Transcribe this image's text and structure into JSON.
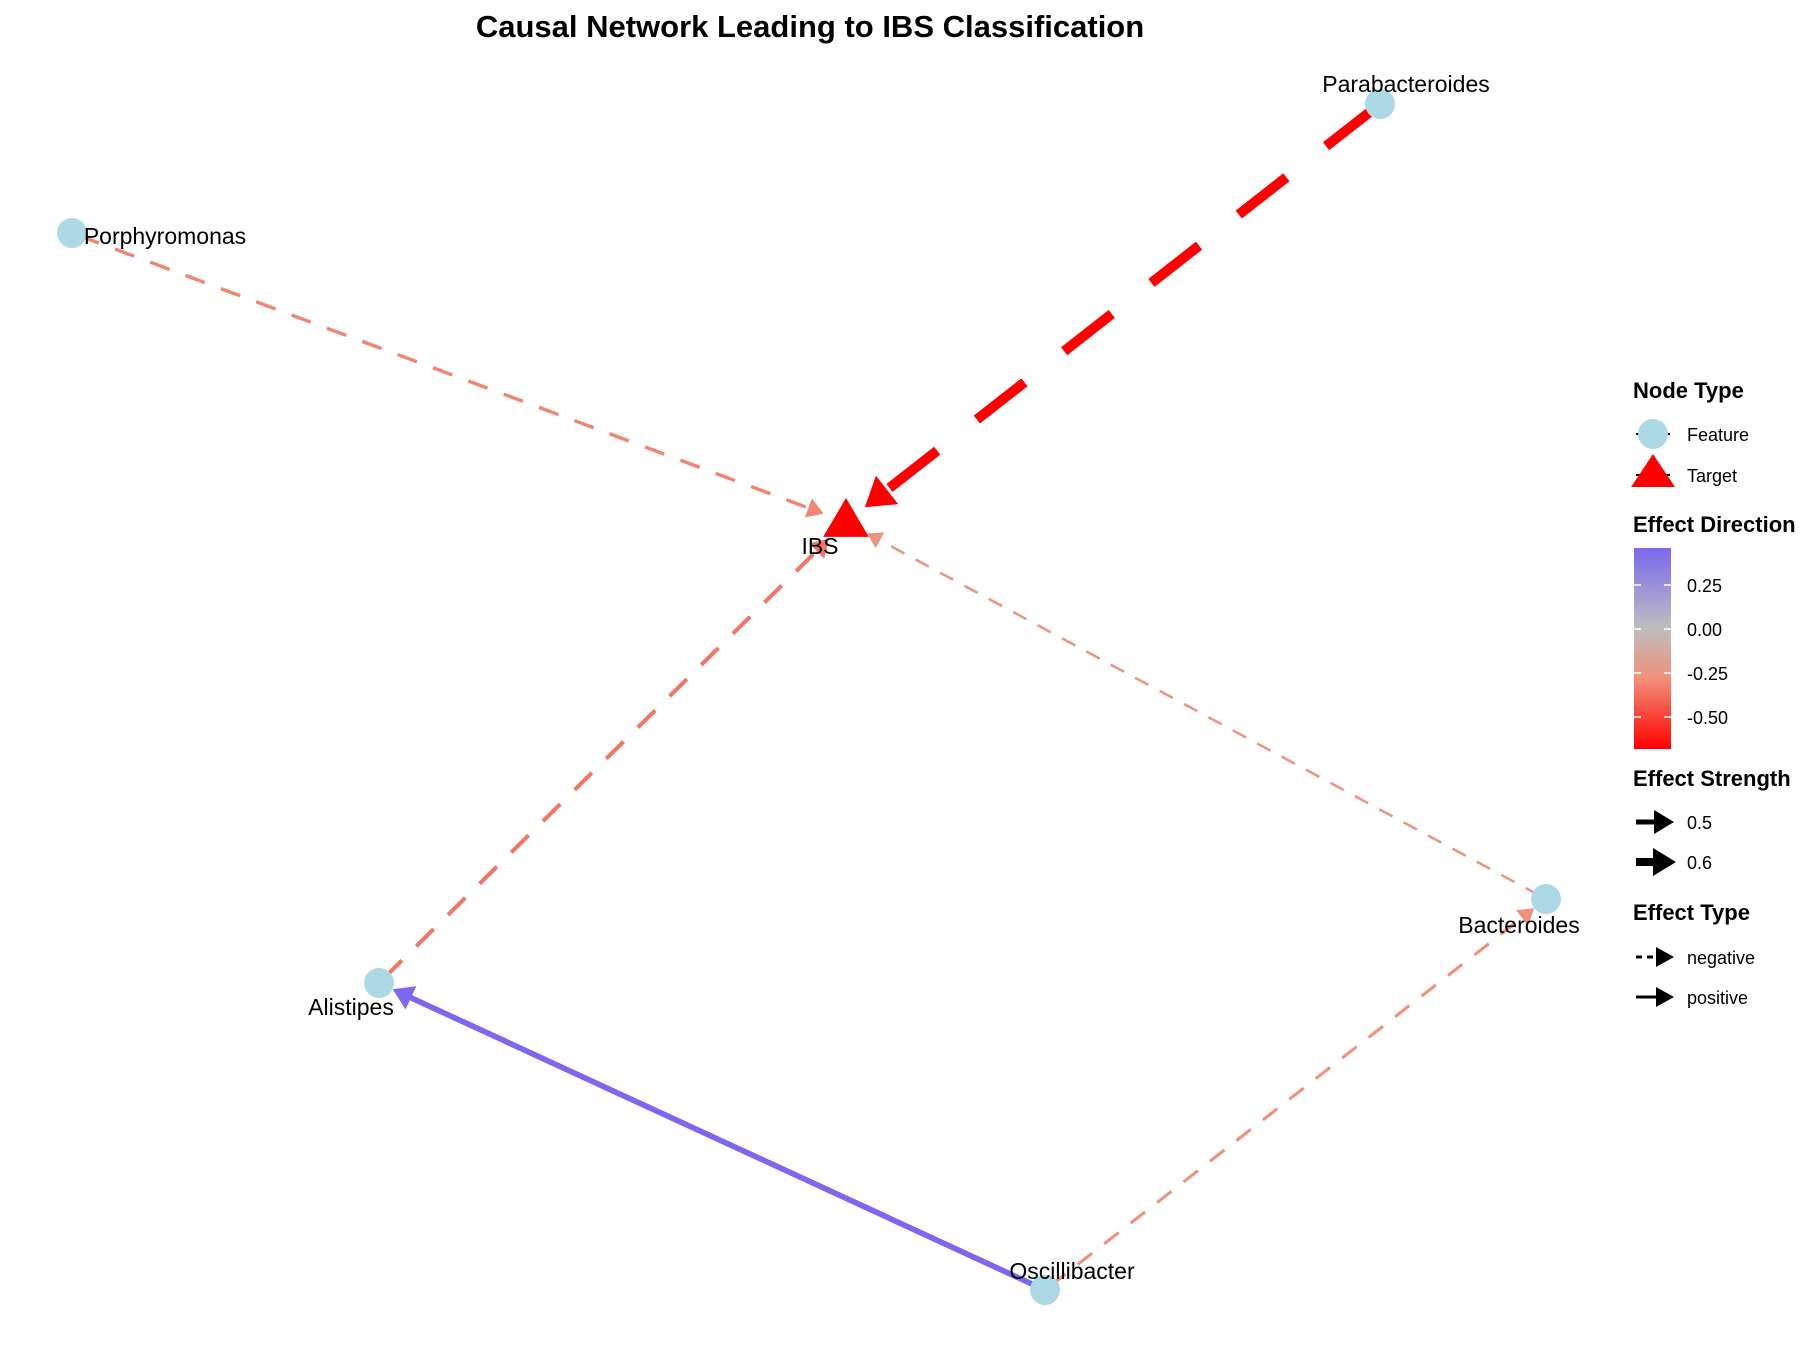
{
  "title": "Causal Network Leading to IBS Classification",
  "colors": {
    "feature_node": "#ADD8E6",
    "target_node": "#FF0000",
    "negative_max": "#FF0000",
    "neutral": "#BEBEBE",
    "positive_max": "#7B68EE",
    "text": "#000000"
  },
  "chart_data": {
    "type": "network",
    "nodes": [
      {
        "id": "IBS",
        "label": "IBS",
        "type": "Target"
      },
      {
        "id": "Parabacteroides",
        "label": "Parabacteroides",
        "type": "Feature"
      },
      {
        "id": "Porphyromonas",
        "label": "Porphyromonas",
        "type": "Feature"
      },
      {
        "id": "Bacteroides",
        "label": "Bacteroides",
        "type": "Feature"
      },
      {
        "id": "Alistipes",
        "label": "Alistipes",
        "type": "Feature"
      },
      {
        "id": "Oscillibacter",
        "label": "Oscillibacter",
        "type": "Feature"
      }
    ],
    "edges": [
      {
        "from": "Parabacteroides",
        "to": "IBS",
        "effect": -0.6,
        "strength": 0.6,
        "effect_type": "negative"
      },
      {
        "from": "Porphyromonas",
        "to": "IBS",
        "effect": -0.35,
        "strength": 0.35,
        "effect_type": "negative"
      },
      {
        "from": "Bacteroides",
        "to": "IBS",
        "effect": -0.3,
        "strength": 0.3,
        "effect_type": "negative"
      },
      {
        "from": "Alistipes",
        "to": "IBS",
        "effect": -0.38,
        "strength": 0.38,
        "effect_type": "negative"
      },
      {
        "from": "Oscillibacter",
        "to": "Bacteroides",
        "effect": -0.33,
        "strength": 0.33,
        "effect_type": "negative"
      },
      {
        "from": "Oscillibacter",
        "to": "Alistipes",
        "effect": 0.45,
        "strength": 0.45,
        "effect_type": "positive"
      }
    ],
    "effect_range": [
      -0.6,
      0.45
    ]
  },
  "legend": {
    "node_type": {
      "title": "Node Type",
      "items": [
        "Feature",
        "Target"
      ]
    },
    "effect_direction": {
      "title": "Effect Direction",
      "ticks": [
        {
          "value": 0.25,
          "label": "0.25"
        },
        {
          "value": 0.0,
          "label": "0.00"
        },
        {
          "value": -0.25,
          "label": "-0.25"
        },
        {
          "value": -0.5,
          "label": "-0.50"
        }
      ]
    },
    "effect_strength": {
      "title": "Effect Strength",
      "items": [
        "0.5",
        "0.6"
      ]
    },
    "effect_type": {
      "title": "Effect Type",
      "items": [
        "negative",
        "positive"
      ]
    }
  }
}
